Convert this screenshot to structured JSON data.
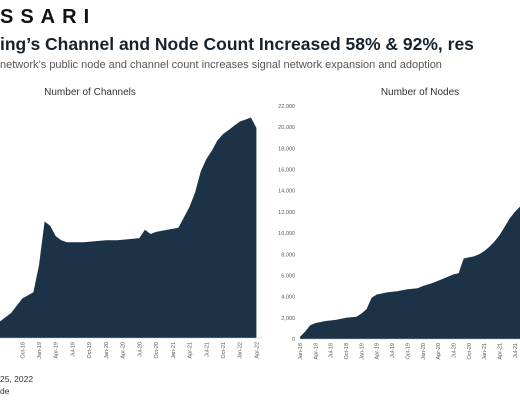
{
  "header": {
    "brand": "SSARI",
    "headline": "ing’s Channel and Node Count Increased 58% & 92%, res",
    "subhead": "network’s public node and channel count increases signal network expansion and adoption"
  },
  "footer": {
    "date_line": "25, 2022",
    "source_line": "de"
  },
  "colors": {
    "fill": "#1c3347",
    "axis": "#bdbdbd"
  },
  "chart_data": [
    {
      "type": "area",
      "title": "Number of Channels",
      "x_tick_labels": [
        "Oct-18",
        "Jan-19",
        "Apr-19",
        "Jul-19",
        "Oct-19",
        "Jan-20",
        "Apr-20",
        "Jul-20",
        "Oct-20",
        "Jan-21",
        "Apr-21",
        "Jul-21",
        "Oct-21",
        "Jan-22",
        "Apr-22"
      ],
      "x": [
        "2018-06",
        "2018-08",
        "2018-10",
        "2018-12",
        "2019-01",
        "2019-02",
        "2019-03",
        "2019-04",
        "2019-05",
        "2019-06",
        "2019-07",
        "2019-09",
        "2019-11",
        "2020-01",
        "2020-03",
        "2020-05",
        "2020-07",
        "2020-08",
        "2020-09",
        "2020-10",
        "2020-12",
        "2021-02",
        "2021-03",
        "2021-04",
        "2021-05",
        "2021-06",
        "2021-07",
        "2021-08",
        "2021-09",
        "2021-10",
        "2021-11",
        "2021-12",
        "2022-01",
        "2022-02",
        "2022-03",
        "2022-04"
      ],
      "values": [
        0.08,
        0.12,
        0.19,
        0.22,
        0.35,
        0.56,
        0.54,
        0.49,
        0.47,
        0.46,
        0.46,
        0.46,
        0.465,
        0.47,
        0.47,
        0.475,
        0.48,
        0.52,
        0.5,
        0.51,
        0.52,
        0.53,
        0.58,
        0.63,
        0.7,
        0.8,
        0.86,
        0.9,
        0.95,
        0.98,
        1.0,
        1.02,
        1.04,
        1.05,
        1.06,
        1.01
      ],
      "value_scale": "relative"
    },
    {
      "type": "area",
      "title": "Number of Nodes",
      "y_tick_labels": [
        "0",
        "2,000",
        "4,000",
        "6,000",
        "8,000",
        "10,000",
        "12,000",
        "14,000",
        "16,000",
        "18,000",
        "20,000",
        "22,000"
      ],
      "ylim": [
        0,
        22000
      ],
      "x_tick_labels": [
        "Jan-18",
        "Apr-18",
        "Jul-18",
        "Oct-18",
        "Jan-19",
        "Apr-19",
        "Jul-19",
        "Oct-19",
        "Jan-20",
        "Apr-20",
        "Jul-20",
        "Oct-20",
        "Jan-21",
        "Apr-21",
        "Jul-21"
      ],
      "x": [
        "2018-01",
        "2018-02",
        "2018-03",
        "2018-04",
        "2018-06",
        "2018-08",
        "2018-10",
        "2018-12",
        "2019-01",
        "2019-02",
        "2019-03",
        "2019-04",
        "2019-05",
        "2019-06",
        "2019-08",
        "2019-10",
        "2019-12",
        "2020-01",
        "2020-03",
        "2020-05",
        "2020-07",
        "2020-08",
        "2020-09",
        "2020-10",
        "2020-11",
        "2020-12",
        "2021-01",
        "2021-02",
        "2021-03",
        "2021-04",
        "2021-05",
        "2021-06",
        "2021-07",
        "2021-08"
      ],
      "values": [
        200,
        700,
        1300,
        1500,
        1700,
        1800,
        2000,
        2100,
        2400,
        2800,
        3900,
        4200,
        4300,
        4400,
        4500,
        4700,
        4800,
        5000,
        5300,
        5700,
        6100,
        6200,
        7600,
        7700,
        7800,
        8000,
        8300,
        8700,
        9200,
        9800,
        10600,
        11400,
        12000,
        12500
      ]
    }
  ]
}
